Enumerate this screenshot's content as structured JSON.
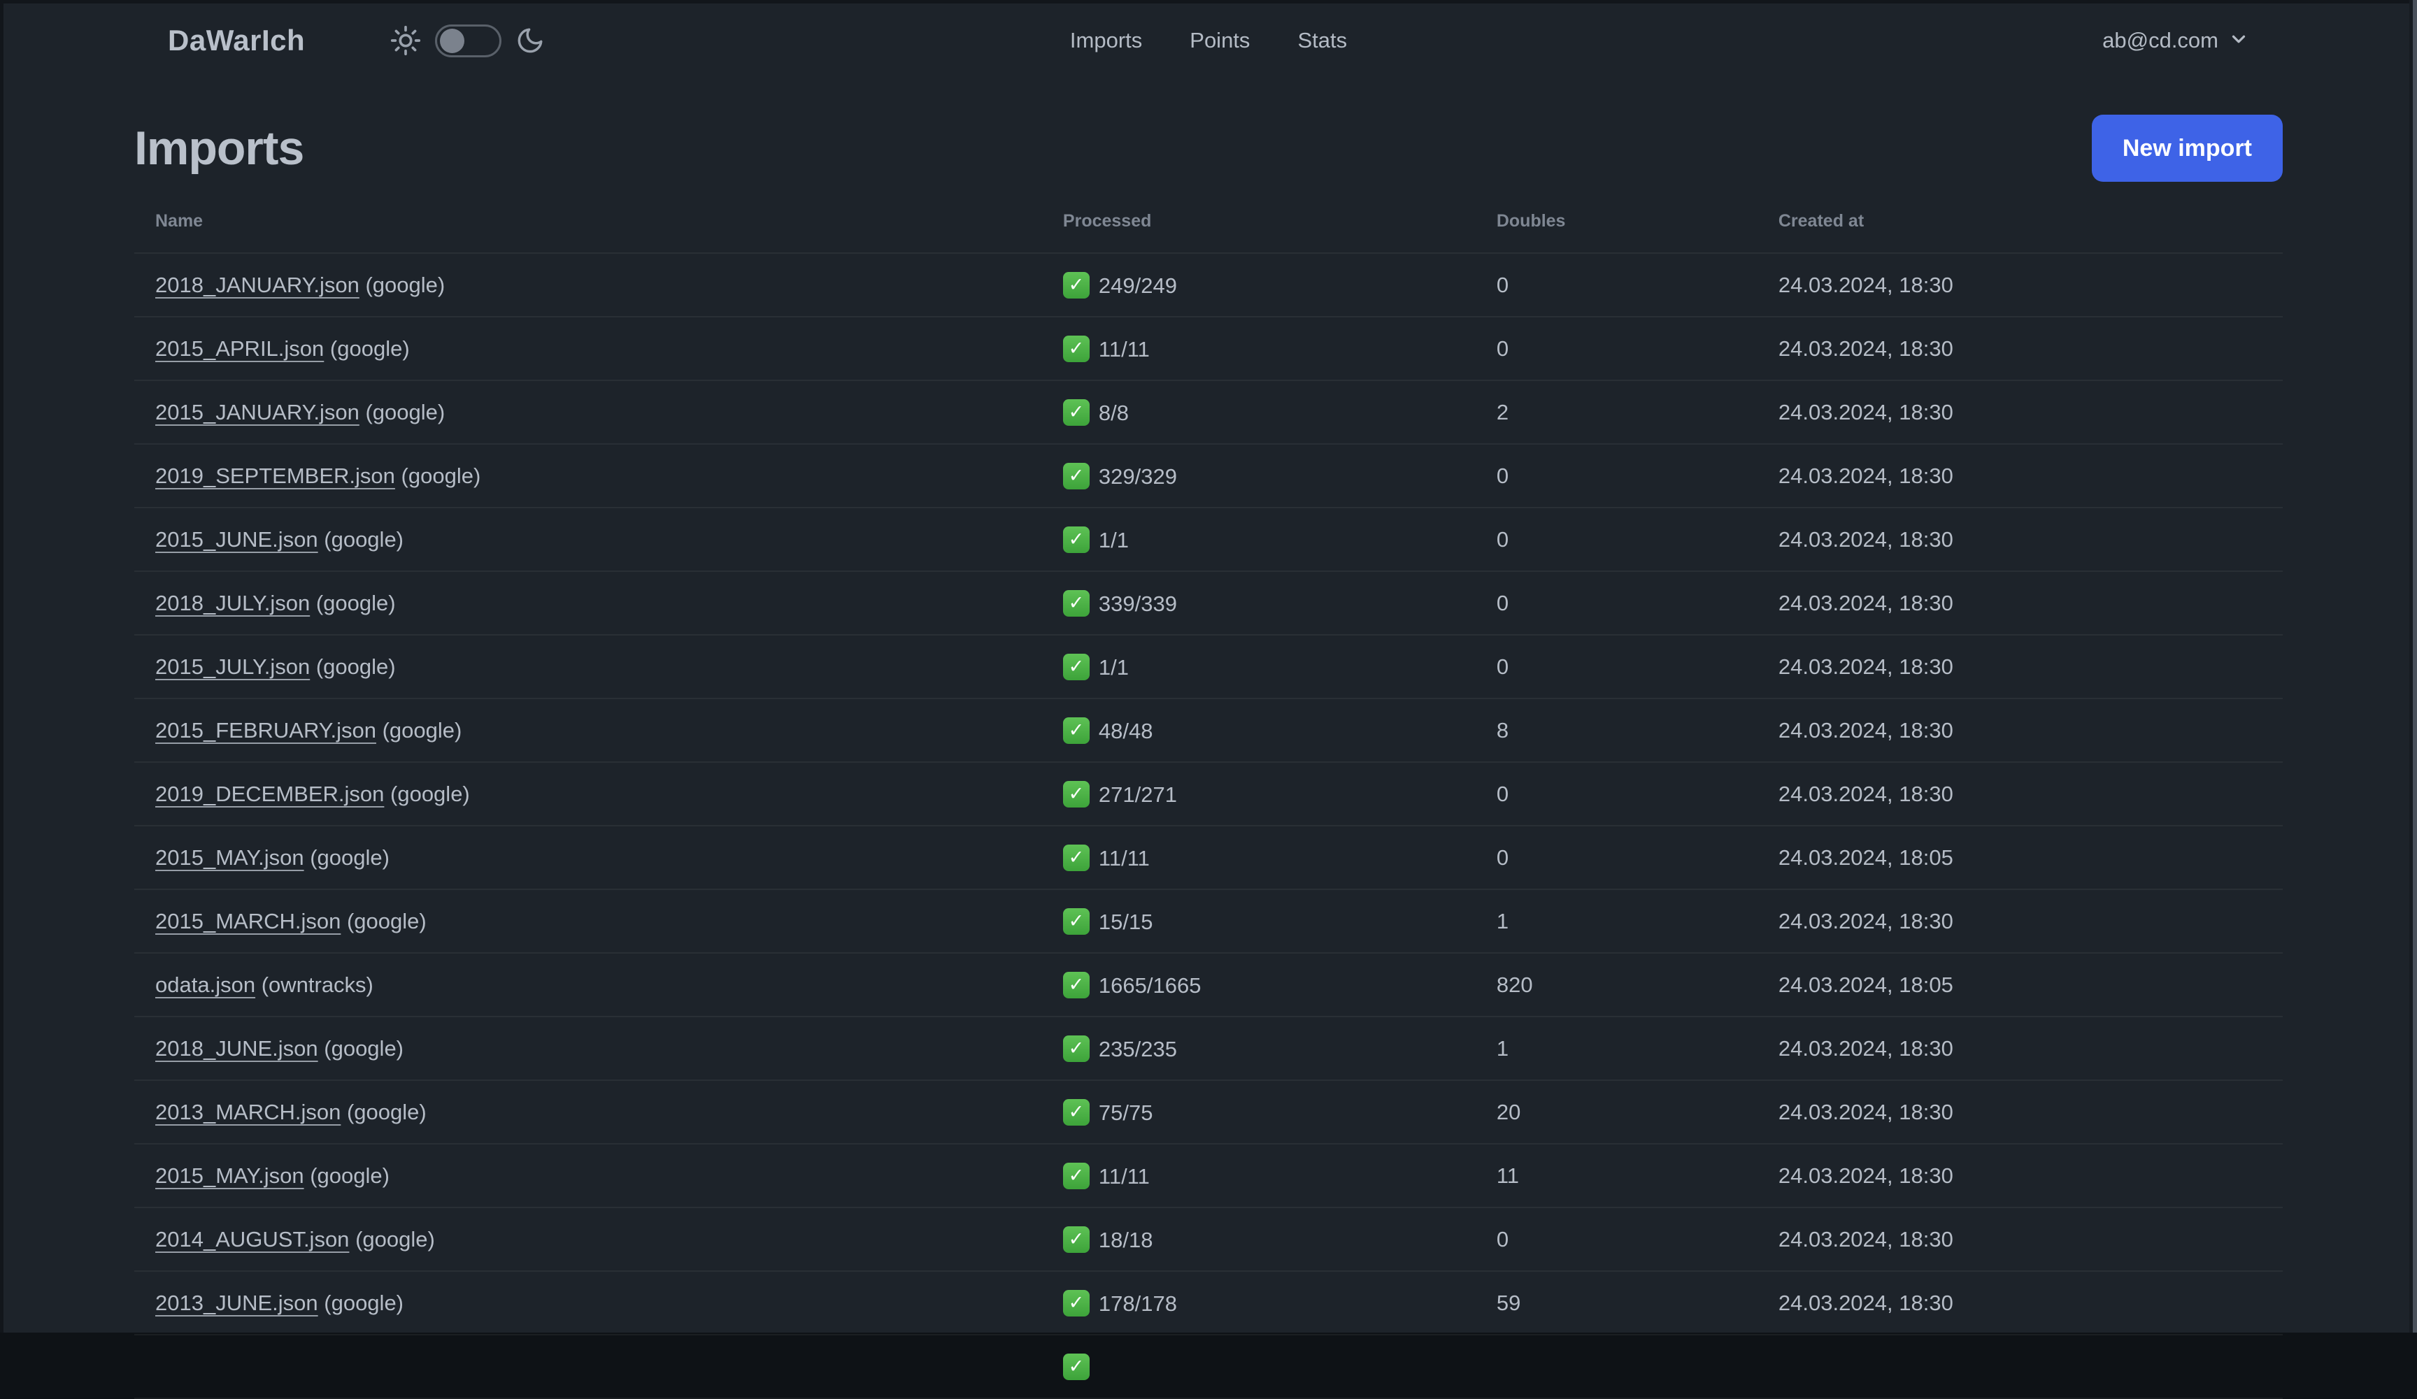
{
  "app": {
    "logo": "DaWarIch"
  },
  "navbar": {
    "links": [
      {
        "label": "Imports"
      },
      {
        "label": "Points"
      },
      {
        "label": "Stats"
      }
    ],
    "theme_toggle": {
      "checked": false
    },
    "user_email": "ab@cd.com"
  },
  "page": {
    "title": "Imports",
    "new_import_label": "New import"
  },
  "table": {
    "columns": [
      "Name",
      "Processed",
      "Doubles",
      "Created at"
    ],
    "rows": [
      {
        "file": "2018_JANUARY.json",
        "source": "(google)",
        "processed": "249/249",
        "doubles": "0",
        "created_at": "24.03.2024, 18:30"
      },
      {
        "file": "2015_APRIL.json",
        "source": "(google)",
        "processed": "11/11",
        "doubles": "0",
        "created_at": "24.03.2024, 18:30"
      },
      {
        "file": "2015_JANUARY.json",
        "source": "(google)",
        "processed": "8/8",
        "doubles": "2",
        "created_at": "24.03.2024, 18:30"
      },
      {
        "file": "2019_SEPTEMBER.json",
        "source": "(google)",
        "processed": "329/329",
        "doubles": "0",
        "created_at": "24.03.2024, 18:30"
      },
      {
        "file": "2015_JUNE.json",
        "source": "(google)",
        "processed": "1/1",
        "doubles": "0",
        "created_at": "24.03.2024, 18:30"
      },
      {
        "file": "2018_JULY.json",
        "source": "(google)",
        "processed": "339/339",
        "doubles": "0",
        "created_at": "24.03.2024, 18:30"
      },
      {
        "file": "2015_JULY.json",
        "source": "(google)",
        "processed": "1/1",
        "doubles": "0",
        "created_at": "24.03.2024, 18:30"
      },
      {
        "file": "2015_FEBRUARY.json",
        "source": "(google)",
        "processed": "48/48",
        "doubles": "8",
        "created_at": "24.03.2024, 18:30"
      },
      {
        "file": "2019_DECEMBER.json",
        "source": "(google)",
        "processed": "271/271",
        "doubles": "0",
        "created_at": "24.03.2024, 18:30"
      },
      {
        "file": "2015_MAY.json",
        "source": "(google)",
        "processed": "11/11",
        "doubles": "0",
        "created_at": "24.03.2024, 18:05"
      },
      {
        "file": "2015_MARCH.json",
        "source": "(google)",
        "processed": "15/15",
        "doubles": "1",
        "created_at": "24.03.2024, 18:30"
      },
      {
        "file": "odata.json",
        "source": "(owntracks)",
        "processed": "1665/1665",
        "doubles": "820",
        "created_at": "24.03.2024, 18:05"
      },
      {
        "file": "2018_JUNE.json",
        "source": "(google)",
        "processed": "235/235",
        "doubles": "1",
        "created_at": "24.03.2024, 18:30"
      },
      {
        "file": "2013_MARCH.json",
        "source": "(google)",
        "processed": "75/75",
        "doubles": "20",
        "created_at": "24.03.2024, 18:30"
      },
      {
        "file": "2015_MAY.json",
        "source": "(google)",
        "processed": "11/11",
        "doubles": "11",
        "created_at": "24.03.2024, 18:30"
      },
      {
        "file": "2014_AUGUST.json",
        "source": "(google)",
        "processed": "18/18",
        "doubles": "0",
        "created_at": "24.03.2024, 18:30"
      },
      {
        "file": "2013_JUNE.json",
        "source": "(google)",
        "processed": "178/178",
        "doubles": "59",
        "created_at": "24.03.2024, 18:30"
      }
    ],
    "partial_row_visible": true
  },
  "colors": {
    "background": "#1d232a",
    "primary_button": "#3e63e7",
    "success_green": "#4caf4a"
  }
}
